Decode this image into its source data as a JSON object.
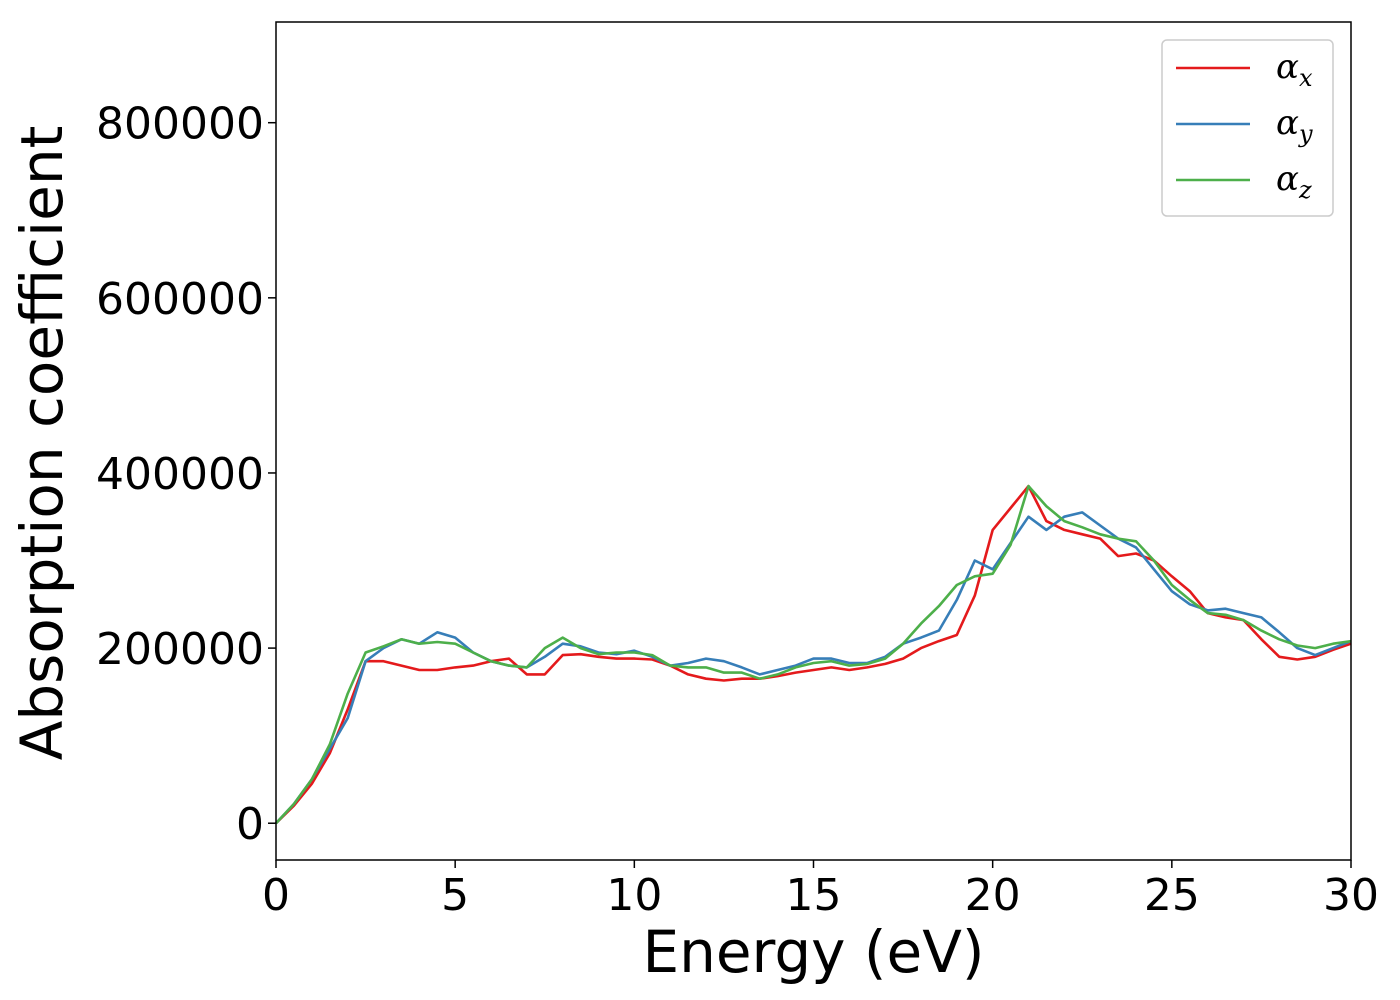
{
  "chart_data": {
    "type": "line",
    "title": "",
    "xlabel": "Energy (eV)",
    "ylabel": "Absorption coefficient",
    "xlim": [
      0,
      30
    ],
    "ylim": [
      -42000,
      915000
    ],
    "xticks": [
      0,
      5,
      10,
      15,
      20,
      25,
      30
    ],
    "xtick_labels": [
      "0",
      "5",
      "10",
      "15",
      "20",
      "25",
      "30"
    ],
    "yticks": [
      0,
      200000,
      400000,
      600000,
      800000
    ],
    "ytick_labels": [
      "0",
      "200000",
      "400000",
      "600000",
      "800000"
    ],
    "grid": false,
    "legend_position": "top-right",
    "series": [
      {
        "name": "α_x",
        "legend_base": "α",
        "legend_sub": "x",
        "color": "#e41a1c",
        "x": [
          0,
          0.5,
          1.0,
          1.5,
          2.0,
          2.5,
          3.0,
          3.5,
          4.0,
          4.5,
          5.0,
          5.5,
          6.0,
          6.5,
          7.0,
          7.5,
          8.0,
          8.5,
          9.0,
          9.5,
          10.0,
          10.5,
          11.0,
          11.5,
          12.0,
          12.5,
          13.0,
          13.5,
          14.0,
          14.5,
          15.0,
          15.5,
          16.0,
          16.5,
          17.0,
          17.5,
          18.0,
          18.5,
          19.0,
          19.5,
          20.0,
          20.5,
          21.0,
          21.5,
          22.0,
          22.5,
          23.0,
          23.5,
          24.0,
          24.5,
          25.0,
          25.5,
          26.0,
          26.5,
          27.0,
          27.5,
          28.0,
          28.5,
          29.0,
          29.5,
          30.0
        ],
        "values": [
          0,
          20000,
          45000,
          80000,
          130000,
          185000,
          185000,
          180000,
          175000,
          175000,
          178000,
          180000,
          185000,
          188000,
          170000,
          170000,
          192000,
          193000,
          190000,
          188000,
          188000,
          187000,
          180000,
          170000,
          165000,
          163000,
          165000,
          165000,
          168000,
          172000,
          175000,
          178000,
          175000,
          178000,
          182000,
          188000,
          200000,
          208000,
          215000,
          260000,
          335000,
          360000,
          385000,
          345000,
          335000,
          330000,
          325000,
          305000,
          308000,
          300000,
          282000,
          265000,
          240000,
          235000,
          232000,
          210000,
          190000,
          187000,
          190000,
          198000,
          205000
        ]
      },
      {
        "name": "α_y",
        "legend_base": "α",
        "legend_sub": "y",
        "color": "#377eb8",
        "x": [
          0,
          0.5,
          1.0,
          1.5,
          2.0,
          2.5,
          3.0,
          3.5,
          4.0,
          4.5,
          5.0,
          5.5,
          6.0,
          6.5,
          7.0,
          7.5,
          8.0,
          8.5,
          9.0,
          9.5,
          10.0,
          10.5,
          11.0,
          11.5,
          12.0,
          12.5,
          13.0,
          13.5,
          14.0,
          14.5,
          15.0,
          15.5,
          16.0,
          16.5,
          17.0,
          17.5,
          18.0,
          18.5,
          19.0,
          19.5,
          20.0,
          20.5,
          21.0,
          21.5,
          22.0,
          22.5,
          23.0,
          23.5,
          24.0,
          24.5,
          25.0,
          25.5,
          26.0,
          26.5,
          27.0,
          27.5,
          28.0,
          28.5,
          29.0,
          29.5,
          30.0
        ],
        "values": [
          0,
          22000,
          50000,
          85000,
          120000,
          185000,
          200000,
          210000,
          205000,
          218000,
          212000,
          195000,
          185000,
          180000,
          178000,
          190000,
          205000,
          202000,
          195000,
          193000,
          197000,
          190000,
          180000,
          183000,
          188000,
          185000,
          178000,
          170000,
          175000,
          180000,
          188000,
          188000,
          183000,
          183000,
          190000,
          205000,
          212000,
          220000,
          255000,
          300000,
          290000,
          320000,
          350000,
          335000,
          350000,
          355000,
          340000,
          325000,
          315000,
          290000,
          265000,
          250000,
          243000,
          245000,
          240000,
          235000,
          218000,
          200000,
          192000,
          200000,
          208000
        ]
      },
      {
        "name": "α_z",
        "legend_base": "α",
        "legend_sub": "z",
        "color": "#4daf4a",
        "x": [
          0,
          0.5,
          1.0,
          1.5,
          2.0,
          2.5,
          3.0,
          3.5,
          4.0,
          4.5,
          5.0,
          5.5,
          6.0,
          6.5,
          7.0,
          7.5,
          8.0,
          8.5,
          9.0,
          9.5,
          10.0,
          10.5,
          11.0,
          11.5,
          12.0,
          12.5,
          13.0,
          13.5,
          14.0,
          14.5,
          15.0,
          15.5,
          16.0,
          16.5,
          17.0,
          17.5,
          18.0,
          18.5,
          19.0,
          19.5,
          20.0,
          20.5,
          21.0,
          21.5,
          22.0,
          22.5,
          23.0,
          23.5,
          24.0,
          24.5,
          25.0,
          25.5,
          26.0,
          26.5,
          27.0,
          27.5,
          28.0,
          28.5,
          29.0,
          29.5,
          30.0
        ],
        "values": [
          0,
          22000,
          50000,
          90000,
          148000,
          195000,
          202000,
          210000,
          205000,
          207000,
          205000,
          195000,
          185000,
          180000,
          178000,
          200000,
          212000,
          200000,
          193000,
          195000,
          195000,
          192000,
          180000,
          178000,
          178000,
          172000,
          172000,
          165000,
          170000,
          178000,
          183000,
          185000,
          180000,
          182000,
          188000,
          205000,
          228000,
          248000,
          272000,
          282000,
          285000,
          318000,
          385000,
          362000,
          345000,
          338000,
          330000,
          325000,
          322000,
          300000,
          272000,
          255000,
          240000,
          238000,
          232000,
          220000,
          210000,
          203000,
          200000,
          205000,
          208000
        ]
      }
    ]
  }
}
